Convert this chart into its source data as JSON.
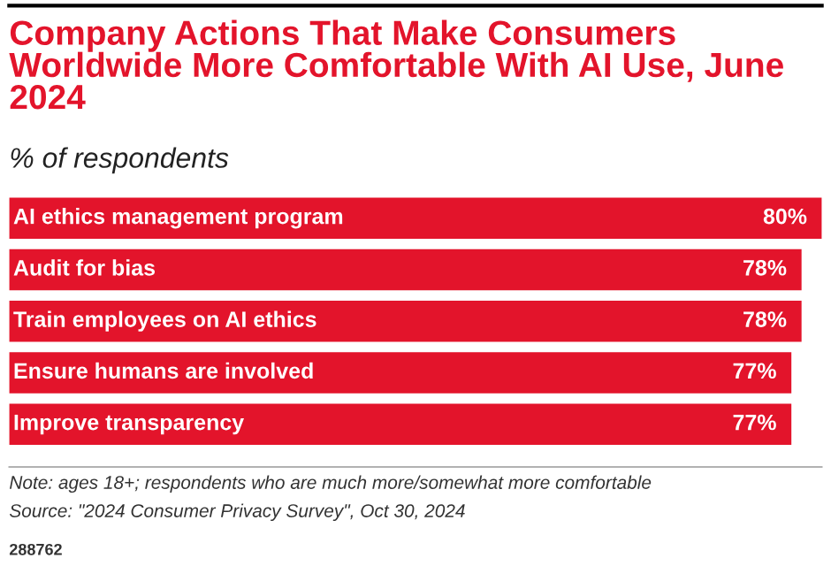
{
  "chart_data": {
    "type": "bar",
    "orientation": "horizontal",
    "title": "Company Actions That Make Consumers Worldwide More Comfortable With AI Use, June 2024",
    "subtitle": "% of respondents",
    "categories": [
      "AI ethics management program",
      "Audit for bias",
      "Train employees on AI ethics",
      "Ensure humans are involved",
      "Improve transparency"
    ],
    "values": [
      80,
      78,
      78,
      77,
      77
    ],
    "value_labels": [
      "80%",
      "78%",
      "78%",
      "77%",
      "77%"
    ],
    "color": "#e3142b",
    "tick_labels": false,
    "grid": false,
    "legend": false,
    "annotations": [
      "Note: ages 18+; respondents who are much more/somewhat more comfortable",
      "Source: \"2024 Consumer Privacy Survey\", Oct 30, 2024",
      "288762"
    ]
  }
}
